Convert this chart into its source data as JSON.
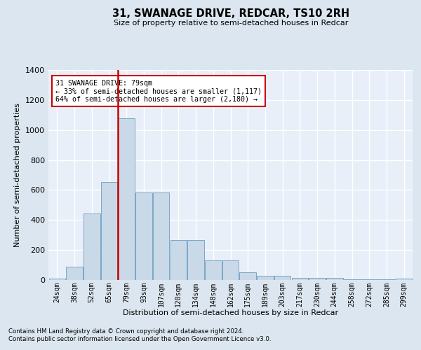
{
  "title": "31, SWANAGE DRIVE, REDCAR, TS10 2RH",
  "subtitle": "Size of property relative to semi-detached houses in Redcar",
  "xlabel": "Distribution of semi-detached houses by size in Redcar",
  "ylabel": "Number of semi-detached properties",
  "footnote1": "Contains HM Land Registry data © Crown copyright and database right 2024.",
  "footnote2": "Contains public sector information licensed under the Open Government Licence v3.0.",
  "annotation_title": "31 SWANAGE DRIVE: 79sqm",
  "annotation_line1": "← 33% of semi-detached houses are smaller (1,117)",
  "annotation_line2": "64% of semi-detached houses are larger (2,180) →",
  "property_size_label": "79sqm",
  "bar_color": "#c9d9e8",
  "bar_edge_color": "#6a9ec0",
  "highlight_line_color": "#cc0000",
  "annotation_box_color": "#ffffff",
  "annotation_box_edge": "#cc0000",
  "bg_color": "#dce6f0",
  "plot_bg_color": "#e8eff8",
  "grid_color": "#ffffff",
  "categories": [
    "24sqm",
    "38sqm",
    "52sqm",
    "65sqm",
    "79sqm",
    "93sqm",
    "107sqm",
    "120sqm",
    "134sqm",
    "148sqm",
    "162sqm",
    "175sqm",
    "189sqm",
    "203sqm",
    "217sqm",
    "230sqm",
    "244sqm",
    "258sqm",
    "272sqm",
    "285sqm",
    "299sqm"
  ],
  "values": [
    10,
    90,
    445,
    655,
    1080,
    585,
    585,
    265,
    265,
    130,
    130,
    50,
    30,
    30,
    15,
    15,
    15,
    5,
    3,
    3,
    10
  ],
  "ylim": [
    0,
    1400
  ],
  "yticks": [
    0,
    200,
    400,
    600,
    800,
    1000,
    1200,
    1400
  ]
}
